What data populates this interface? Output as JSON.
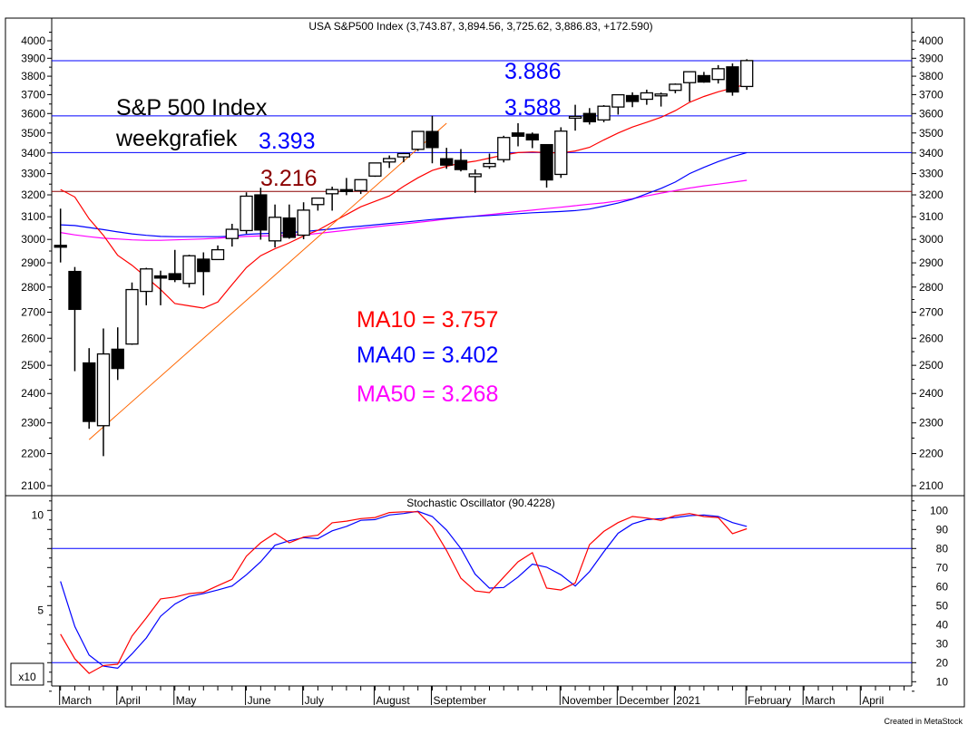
{
  "chart_data": {
    "type": "candlestick",
    "title": "USA S&P500 Index (3,743.87, 3,894.56, 3,725.62, 3,886.83, +172.590)",
    "y_scale": "log",
    "ylim": [
      2060,
      4100
    ],
    "y_ticks": [
      2100,
      2200,
      2300,
      2400,
      2500,
      2600,
      2700,
      2800,
      2900,
      3000,
      3100,
      3200,
      3300,
      3400,
      3500,
      3600,
      3700,
      3800,
      3900,
      4000
    ],
    "grid": false,
    "colors": {
      "up_body": "#ffffff",
      "down_body": "#000000",
      "ma10": "#ff0000",
      "ma40": "#0000ff",
      "ma50": "#ff00ff",
      "trendline": "#ff6600",
      "level_blue": "#0000ff",
      "level_darkred": "#8b0000",
      "annotation_text": "#000000"
    },
    "weeks": [
      "2020-03-02",
      "2020-03-09",
      "2020-03-16",
      "2020-03-23",
      "2020-03-30",
      "2020-04-06",
      "2020-04-13",
      "2020-04-20",
      "2020-04-27",
      "2020-05-04",
      "2020-05-11",
      "2020-05-18",
      "2020-05-25",
      "2020-06-01",
      "2020-06-08",
      "2020-06-15",
      "2020-06-22",
      "2020-06-29",
      "2020-07-06",
      "2020-07-13",
      "2020-07-20",
      "2020-07-27",
      "2020-08-03",
      "2020-08-10",
      "2020-08-17",
      "2020-08-24",
      "2020-08-31",
      "2020-09-08",
      "2020-09-14",
      "2020-09-21",
      "2020-09-28",
      "2020-10-05",
      "2020-10-12",
      "2020-10-19",
      "2020-10-26",
      "2020-11-02",
      "2020-11-09",
      "2020-11-16",
      "2020-11-23",
      "2020-11-30",
      "2020-12-07",
      "2020-12-14",
      "2020-12-21",
      "2020-12-28",
      "2021-01-04",
      "2021-01-11",
      "2021-01-19",
      "2021-01-25",
      "2021-02-01"
    ],
    "ohlc": [
      [
        2974.28,
        3136.72,
        2901.54,
        2972.37
      ],
      [
        2863.89,
        2882.59,
        2478.86,
        2711.02
      ],
      [
        2508.59,
        2562.98,
        2280.52,
        2304.92
      ],
      [
        2290.71,
        2637.01,
        2191.86,
        2541.47
      ],
      [
        2558.98,
        2641.39,
        2447.49,
        2488.65
      ],
      [
        2578.28,
        2818.57,
        2575.26,
        2789.82
      ],
      [
        2782.46,
        2879.22,
        2727.1,
        2874.56
      ],
      [
        2845.62,
        2867.29,
        2727.1,
        2836.74
      ],
      [
        2854.65,
        2954.86,
        2820.0,
        2830.71
      ],
      [
        2815.01,
        2934.32,
        2797.85,
        2929.8
      ],
      [
        2915.46,
        2944.25,
        2766.64,
        2863.7
      ],
      [
        2913.86,
        2974.0,
        2913.0,
        2955.45
      ],
      [
        3004.08,
        3068.67,
        2969.0,
        3044.31
      ],
      [
        3038.78,
        3211.72,
        3025.0,
        3193.93
      ],
      [
        3199.92,
        3233.13,
        2999.0,
        3041.31
      ],
      [
        2993.76,
        3155.53,
        2965.66,
        3097.74
      ],
      [
        3094.42,
        3155.53,
        3003.0,
        3009.05
      ],
      [
        3018.59,
        3165.81,
        3001.0,
        3130.01
      ],
      [
        3155.29,
        3186.0,
        3127.66,
        3185.04
      ],
      [
        3205.08,
        3238.28,
        3127.66,
        3224.73
      ],
      [
        3224.29,
        3279.32,
        3198.59,
        3215.63
      ],
      [
        3219.84,
        3272.0,
        3204.0,
        3271.12
      ],
      [
        3288.26,
        3352.54,
        3284.53,
        3351.28
      ],
      [
        3356.04,
        3387.89,
        3327.0,
        3372.85
      ],
      [
        3380.86,
        3399.96,
        3354.69,
        3397.16
      ],
      [
        3418.09,
        3509.23,
        3410.0,
        3508.01
      ],
      [
        3507.44,
        3588.11,
        3349.63,
        3426.96
      ],
      [
        3371.88,
        3425.55,
        3323.0,
        3340.97
      ],
      [
        3363.56,
        3419.48,
        3310.47,
        3319.47
      ],
      [
        3285.57,
        3320.31,
        3209.45,
        3298.46
      ],
      [
        3333.9,
        3397.18,
        3323.0,
        3348.42
      ],
      [
        3367.27,
        3486.0,
        3354.0,
        3477.14
      ],
      [
        3500.02,
        3549.85,
        3433.0,
        3483.81
      ],
      [
        3493.5,
        3502.42,
        3424.0,
        3465.39
      ],
      [
        3441.42,
        3441.42,
        3233.94,
        3269.96
      ],
      [
        3296.2,
        3529.05,
        3279.74,
        3509.44
      ],
      [
        3583.04,
        3645.99,
        3511.91,
        3585.15
      ],
      [
        3600.16,
        3628.51,
        3543.0,
        3557.54
      ],
      [
        3566.82,
        3644.31,
        3555.0,
        3638.35
      ],
      [
        3634.18,
        3699.2,
        3594.39,
        3699.12
      ],
      [
        3694.73,
        3712.39,
        3633.4,
        3663.46
      ],
      [
        3675.27,
        3726.7,
        3645.84,
        3709.41
      ],
      [
        3693.42,
        3711.24,
        3636.48,
        3703.06
      ],
      [
        3723.03,
        3760.2,
        3707.0,
        3756.07
      ],
      [
        3764.61,
        3826.69,
        3662.71,
        3824.68
      ],
      [
        3803.14,
        3823.6,
        3764.0,
        3768.25
      ],
      [
        3781.88,
        3861.45,
        3760.0,
        3841.47
      ],
      [
        3851.68,
        3870.9,
        3694.12,
        3714.24
      ],
      [
        3743.87,
        3894.56,
        3725.62,
        3886.83
      ]
    ],
    "ma10": [
      3225,
      3190,
      3091,
      3018,
      2932,
      2890,
      2840,
      2790,
      2734,
      2725,
      2716,
      2740,
      2810,
      2880,
      2930,
      2960,
      2985,
      3015,
      3040,
      3075,
      3110,
      3145,
      3170,
      3195,
      3240,
      3280,
      3315,
      3335,
      3350,
      3360,
      3375,
      3390,
      3402,
      3405,
      3402,
      3400,
      3410,
      3428,
      3465,
      3500,
      3530,
      3555,
      3580,
      3615,
      3659,
      3690,
      3715,
      3735,
      3757
    ],
    "ma40": [
      3064,
      3061,
      3052,
      3043,
      3033,
      3024,
      3018,
      3013,
      3012,
      3012,
      3012,
      3012,
      3014,
      3022,
      3025,
      3027,
      3030,
      3034,
      3040,
      3046,
      3053,
      3058,
      3064,
      3070,
      3076,
      3082,
      3088,
      3093,
      3098,
      3102,
      3106,
      3110,
      3114,
      3118,
      3121,
      3124,
      3128,
      3135,
      3148,
      3162,
      3180,
      3205,
      3230,
      3260,
      3300,
      3330,
      3358,
      3382,
      3402
    ],
    "ma50": [
      3030,
      3020,
      3012,
      3005,
      3002,
      2998,
      2996,
      2996,
      2998,
      3000,
      3002,
      3005,
      3010,
      3013,
      3015,
      3016,
      3018,
      3020,
      3026,
      3033,
      3040,
      3048,
      3055,
      3062,
      3068,
      3075,
      3082,
      3090,
      3097,
      3103,
      3110,
      3117,
      3124,
      3130,
      3137,
      3143,
      3150,
      3157,
      3163,
      3172,
      3182,
      3195,
      3208,
      3220,
      3232,
      3242,
      3250,
      3259,
      3268
    ],
    "trendline": {
      "start": {
        "date": "2020-03-16",
        "value": 2245
      },
      "end": {
        "date": "2020-09-08",
        "value": 3550
      }
    },
    "levels": [
      {
        "value": 3886,
        "color": "#0000ff"
      },
      {
        "value": 3588,
        "color": "#0000ff"
      },
      {
        "value": 3402,
        "color": "#0000ff"
      },
      {
        "value": 3216,
        "color": "#8b0000"
      }
    ],
    "annotations": [
      {
        "text": "S&P 500 Index",
        "color": "#000000"
      },
      {
        "text": "weekgrafiek",
        "color": "#000000"
      },
      {
        "text": "3.393",
        "color": "#0000ff"
      },
      {
        "text": "3.216",
        "color": "#8b0000"
      },
      {
        "text": "3.886",
        "color": "#0000ff"
      },
      {
        "text": "3.588",
        "color": "#0000ff"
      },
      {
        "text": "MA10 = 3.757",
        "color": "#ff0000"
      },
      {
        "text": "MA40 = 3.402",
        "color": "#0000ff"
      },
      {
        "text": "MA50 = 3.268",
        "color": "#ff00ff"
      }
    ],
    "x_tick_labels": [
      {
        "label": "March",
        "date": "2020-03-02"
      },
      {
        "label": "April",
        "date": "2020-03-30"
      },
      {
        "label": "May",
        "date": "2020-04-27"
      },
      {
        "label": "June",
        "date": "2020-06-01"
      },
      {
        "label": "July",
        "date": "2020-06-29"
      },
      {
        "label": "August",
        "date": "2020-08-03"
      },
      {
        "label": "September",
        "date": "2020-08-31"
      },
      {
        "label": "November",
        "date": "2020-11-02"
      },
      {
        "label": "December",
        "date": "2020-11-30"
      },
      {
        "label": "2021",
        "date": "2020-12-28"
      },
      {
        "label": "February",
        "date": "2021-02-01"
      },
      {
        "label": "March",
        "date": "2021-03-01"
      },
      {
        "label": "April",
        "date": "2021-03-29"
      }
    ],
    "oscillator": {
      "title": "Stochastic Oscillator (90.4228)",
      "ylim": [
        5,
        107
      ],
      "y_ticks": [
        10,
        20,
        30,
        40,
        50,
        60,
        70,
        80,
        90,
        100
      ],
      "left_labels": [
        "10",
        "5"
      ],
      "left_scale_label": "x10",
      "levels": [
        80,
        20
      ],
      "colors": {
        "k": "#ff0000",
        "d": "#0000ff",
        "levels": "#0000ff"
      },
      "k": [
        35,
        22,
        14.4,
        18.5,
        19.2,
        34,
        43.5,
        53.5,
        54.5,
        56.3,
        57,
        60.5,
        63.8,
        76,
        83,
        88,
        83,
        86,
        87,
        93.5,
        94.4,
        95.7,
        96.3,
        98.9,
        99.3,
        99.3,
        91.5,
        79,
        64.4,
        57.7,
        56.8,
        65,
        73,
        77.8,
        59.2,
        58.2,
        61.9,
        82,
        89,
        93.6,
        96.8,
        96,
        94.8,
        97.3,
        98.4,
        96.8,
        96.3,
        87.8,
        90.4
      ],
      "d": [
        62.7,
        39,
        24,
        18.2,
        17.1,
        24.6,
        33,
        44.4,
        50.8,
        54.8,
        56.3,
        58.2,
        60.3,
        66.2,
        73,
        81.7,
        84.1,
        85.7,
        85.2,
        89.3,
        91.6,
        94.8,
        95.2,
        97.6,
        98.4,
        99.5,
        96.8,
        89.7,
        80,
        66.5,
        59.2,
        59.5,
        65,
        71.8,
        70.2,
        66.2,
        60.3,
        67.8,
        78.3,
        88,
        92.9,
        95.2,
        95.7,
        96.3,
        97.3,
        97.6,
        96.8,
        93.6,
        91.6
      ]
    }
  },
  "footer": "Created in MetaStock"
}
